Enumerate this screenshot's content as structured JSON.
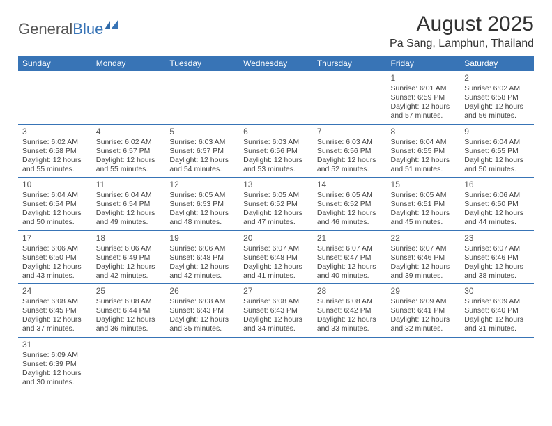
{
  "logo": {
    "part1": "General",
    "part2": "Blue"
  },
  "title": "August 2025",
  "location": "Pa Sang, Lamphun, Thailand",
  "colors": {
    "header_bg": "#3874b6",
    "header_fg": "#ffffff",
    "row_border": "#3874b6",
    "text": "#444444",
    "title": "#333333"
  },
  "typography": {
    "title_fontsize": 30,
    "location_fontsize": 16,
    "dayheader_fontsize": 12,
    "cell_fontsize": 10.5
  },
  "day_headers": [
    "Sunday",
    "Monday",
    "Tuesday",
    "Wednesday",
    "Thursday",
    "Friday",
    "Saturday"
  ],
  "weeks": [
    [
      null,
      null,
      null,
      null,
      null,
      {
        "n": "1",
        "sr": "Sunrise: 6:01 AM",
        "ss": "Sunset: 6:59 PM",
        "d1": "Daylight: 12 hours",
        "d2": "and 57 minutes."
      },
      {
        "n": "2",
        "sr": "Sunrise: 6:02 AM",
        "ss": "Sunset: 6:58 PM",
        "d1": "Daylight: 12 hours",
        "d2": "and 56 minutes."
      }
    ],
    [
      {
        "n": "3",
        "sr": "Sunrise: 6:02 AM",
        "ss": "Sunset: 6:58 PM",
        "d1": "Daylight: 12 hours",
        "d2": "and 55 minutes."
      },
      {
        "n": "4",
        "sr": "Sunrise: 6:02 AM",
        "ss": "Sunset: 6:57 PM",
        "d1": "Daylight: 12 hours",
        "d2": "and 55 minutes."
      },
      {
        "n": "5",
        "sr": "Sunrise: 6:03 AM",
        "ss": "Sunset: 6:57 PM",
        "d1": "Daylight: 12 hours",
        "d2": "and 54 minutes."
      },
      {
        "n": "6",
        "sr": "Sunrise: 6:03 AM",
        "ss": "Sunset: 6:56 PM",
        "d1": "Daylight: 12 hours",
        "d2": "and 53 minutes."
      },
      {
        "n": "7",
        "sr": "Sunrise: 6:03 AM",
        "ss": "Sunset: 6:56 PM",
        "d1": "Daylight: 12 hours",
        "d2": "and 52 minutes."
      },
      {
        "n": "8",
        "sr": "Sunrise: 6:04 AM",
        "ss": "Sunset: 6:55 PM",
        "d1": "Daylight: 12 hours",
        "d2": "and 51 minutes."
      },
      {
        "n": "9",
        "sr": "Sunrise: 6:04 AM",
        "ss": "Sunset: 6:55 PM",
        "d1": "Daylight: 12 hours",
        "d2": "and 50 minutes."
      }
    ],
    [
      {
        "n": "10",
        "sr": "Sunrise: 6:04 AM",
        "ss": "Sunset: 6:54 PM",
        "d1": "Daylight: 12 hours",
        "d2": "and 50 minutes."
      },
      {
        "n": "11",
        "sr": "Sunrise: 6:04 AM",
        "ss": "Sunset: 6:54 PM",
        "d1": "Daylight: 12 hours",
        "d2": "and 49 minutes."
      },
      {
        "n": "12",
        "sr": "Sunrise: 6:05 AM",
        "ss": "Sunset: 6:53 PM",
        "d1": "Daylight: 12 hours",
        "d2": "and 48 minutes."
      },
      {
        "n": "13",
        "sr": "Sunrise: 6:05 AM",
        "ss": "Sunset: 6:52 PM",
        "d1": "Daylight: 12 hours",
        "d2": "and 47 minutes."
      },
      {
        "n": "14",
        "sr": "Sunrise: 6:05 AM",
        "ss": "Sunset: 6:52 PM",
        "d1": "Daylight: 12 hours",
        "d2": "and 46 minutes."
      },
      {
        "n": "15",
        "sr": "Sunrise: 6:05 AM",
        "ss": "Sunset: 6:51 PM",
        "d1": "Daylight: 12 hours",
        "d2": "and 45 minutes."
      },
      {
        "n": "16",
        "sr": "Sunrise: 6:06 AM",
        "ss": "Sunset: 6:50 PM",
        "d1": "Daylight: 12 hours",
        "d2": "and 44 minutes."
      }
    ],
    [
      {
        "n": "17",
        "sr": "Sunrise: 6:06 AM",
        "ss": "Sunset: 6:50 PM",
        "d1": "Daylight: 12 hours",
        "d2": "and 43 minutes."
      },
      {
        "n": "18",
        "sr": "Sunrise: 6:06 AM",
        "ss": "Sunset: 6:49 PM",
        "d1": "Daylight: 12 hours",
        "d2": "and 42 minutes."
      },
      {
        "n": "19",
        "sr": "Sunrise: 6:06 AM",
        "ss": "Sunset: 6:48 PM",
        "d1": "Daylight: 12 hours",
        "d2": "and 42 minutes."
      },
      {
        "n": "20",
        "sr": "Sunrise: 6:07 AM",
        "ss": "Sunset: 6:48 PM",
        "d1": "Daylight: 12 hours",
        "d2": "and 41 minutes."
      },
      {
        "n": "21",
        "sr": "Sunrise: 6:07 AM",
        "ss": "Sunset: 6:47 PM",
        "d1": "Daylight: 12 hours",
        "d2": "and 40 minutes."
      },
      {
        "n": "22",
        "sr": "Sunrise: 6:07 AM",
        "ss": "Sunset: 6:46 PM",
        "d1": "Daylight: 12 hours",
        "d2": "and 39 minutes."
      },
      {
        "n": "23",
        "sr": "Sunrise: 6:07 AM",
        "ss": "Sunset: 6:46 PM",
        "d1": "Daylight: 12 hours",
        "d2": "and 38 minutes."
      }
    ],
    [
      {
        "n": "24",
        "sr": "Sunrise: 6:08 AM",
        "ss": "Sunset: 6:45 PM",
        "d1": "Daylight: 12 hours",
        "d2": "and 37 minutes."
      },
      {
        "n": "25",
        "sr": "Sunrise: 6:08 AM",
        "ss": "Sunset: 6:44 PM",
        "d1": "Daylight: 12 hours",
        "d2": "and 36 minutes."
      },
      {
        "n": "26",
        "sr": "Sunrise: 6:08 AM",
        "ss": "Sunset: 6:43 PM",
        "d1": "Daylight: 12 hours",
        "d2": "and 35 minutes."
      },
      {
        "n": "27",
        "sr": "Sunrise: 6:08 AM",
        "ss": "Sunset: 6:43 PM",
        "d1": "Daylight: 12 hours",
        "d2": "and 34 minutes."
      },
      {
        "n": "28",
        "sr": "Sunrise: 6:08 AM",
        "ss": "Sunset: 6:42 PM",
        "d1": "Daylight: 12 hours",
        "d2": "and 33 minutes."
      },
      {
        "n": "29",
        "sr": "Sunrise: 6:09 AM",
        "ss": "Sunset: 6:41 PM",
        "d1": "Daylight: 12 hours",
        "d2": "and 32 minutes."
      },
      {
        "n": "30",
        "sr": "Sunrise: 6:09 AM",
        "ss": "Sunset: 6:40 PM",
        "d1": "Daylight: 12 hours",
        "d2": "and 31 minutes."
      }
    ],
    [
      {
        "n": "31",
        "sr": "Sunrise: 6:09 AM",
        "ss": "Sunset: 6:39 PM",
        "d1": "Daylight: 12 hours",
        "d2": "and 30 minutes."
      },
      null,
      null,
      null,
      null,
      null,
      null
    ]
  ]
}
